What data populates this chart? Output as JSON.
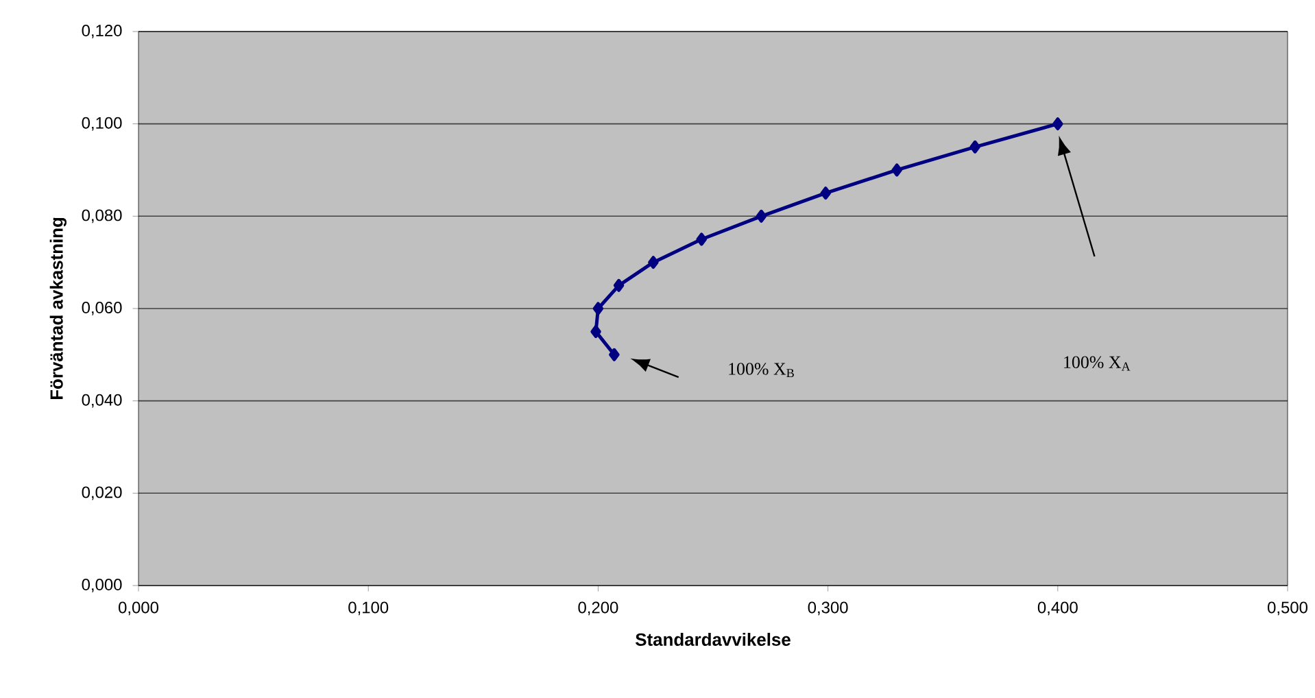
{
  "chart_data": {
    "type": "line",
    "xlabel": "Standardavvikelse",
    "ylabel": "Förväntad avkastning",
    "series": [
      {
        "color": "#000080",
        "x": [
          0.4,
          0.364,
          0.33,
          0.299,
          0.271,
          0.245,
          0.224,
          0.209,
          0.2,
          0.199,
          0.207
        ],
        "values": [
          0.1,
          0.095,
          0.09,
          0.085,
          0.08,
          0.075,
          0.07,
          0.065,
          0.06,
          0.055,
          0.05
        ]
      }
    ],
    "xlim": [
      0,
      0.5
    ],
    "ylim": [
      0,
      0.12
    ],
    "xticks": [
      {
        "value": 0,
        "label": "0,000"
      },
      {
        "value": 0.1,
        "label": "0,100"
      },
      {
        "value": 0.2,
        "label": "0,200"
      },
      {
        "value": 0.3,
        "label": "0,300"
      },
      {
        "value": 0.4,
        "label": "0,400"
      },
      {
        "value": 0.5,
        "label": "0,500"
      }
    ],
    "yticks": [
      {
        "value": 0,
        "label": "0,000"
      },
      {
        "value": 0.02,
        "label": "0,020"
      },
      {
        "value": 0.04,
        "label": "0,040"
      },
      {
        "value": 0.06,
        "label": "0,060"
      },
      {
        "value": 0.08,
        "label": "0,080"
      },
      {
        "value": 0.1,
        "label": "0,100"
      },
      {
        "value": 0.12,
        "label": "0,120"
      }
    ],
    "annotations": [
      "100% X$_{A}$",
      "100% X$_{B}$"
    ],
    "grid": "y",
    "marker": "diamond",
    "line_style": "solid"
  }
}
